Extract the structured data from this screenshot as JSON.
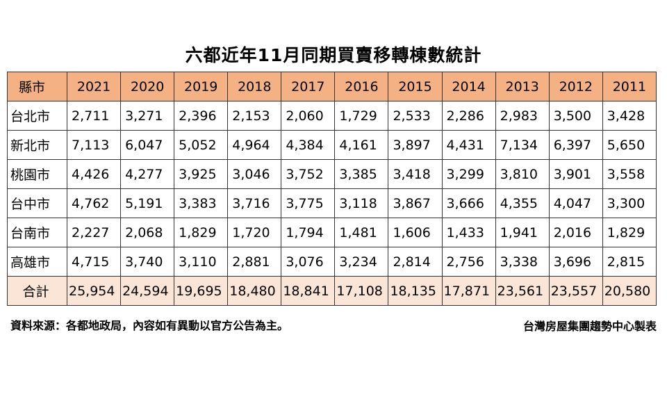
{
  "title": "六都近年11月同期買賣移轉棟數統計",
  "header": {
    "label": "縣市",
    "years": [
      "2021",
      "2020",
      "2019",
      "2018",
      "2017",
      "2016",
      "2015",
      "2014",
      "2013",
      "2012",
      "2011"
    ]
  },
  "rows": [
    {
      "city": "台北市",
      "values": [
        "2,711",
        "3,271",
        "2,396",
        "2,153",
        "2,060",
        "1,729",
        "2,533",
        "2,286",
        "2,983",
        "3,500",
        "3,428"
      ]
    },
    {
      "city": "新北市",
      "values": [
        "7,113",
        "6,047",
        "5,052",
        "4,964",
        "4,384",
        "4,161",
        "3,897",
        "4,431",
        "7,134",
        "6,397",
        "5,650"
      ]
    },
    {
      "city": "桃園市",
      "values": [
        "4,426",
        "4,277",
        "3,925",
        "3,046",
        "3,752",
        "3,385",
        "3,418",
        "3,299",
        "3,810",
        "3,901",
        "3,558"
      ]
    },
    {
      "city": "台中市",
      "values": [
        "4,762",
        "5,191",
        "3,383",
        "3,716",
        "3,775",
        "3,118",
        "3,867",
        "3,666",
        "4,355",
        "4,047",
        "3,300"
      ]
    },
    {
      "city": "台南市",
      "values": [
        "2,227",
        "2,068",
        "1,829",
        "1,720",
        "1,794",
        "1,481",
        "1,606",
        "1,433",
        "1,941",
        "2,016",
        "1,829"
      ]
    },
    {
      "city": "高雄市",
      "values": [
        "4,715",
        "3,740",
        "3,110",
        "2,881",
        "3,076",
        "3,234",
        "2,814",
        "2,756",
        "3,338",
        "3,696",
        "2,815"
      ]
    }
  ],
  "total": {
    "label": "合計",
    "values": [
      "25,954",
      "24,594",
      "19,695",
      "18,480",
      "18,841",
      "17,108",
      "18,135",
      "17,871",
      "23,561",
      "23,557",
      "20,580"
    ]
  },
  "footer": {
    "source": "資料來源：各都地政局，內容如有異動以官方公告為主。",
    "credit": "台灣房屋集團趨勢中心製表"
  },
  "colors": {
    "header_bg": "#f4b183",
    "total_bg": "#fbe5d6"
  },
  "chart_data": {
    "type": "table",
    "title": "六都近年11月同期買賣移轉棟數統計",
    "columns": [
      "縣市",
      "2021",
      "2020",
      "2019",
      "2018",
      "2017",
      "2016",
      "2015",
      "2014",
      "2013",
      "2012",
      "2011"
    ],
    "categories": [
      "2021",
      "2020",
      "2019",
      "2018",
      "2017",
      "2016",
      "2015",
      "2014",
      "2013",
      "2012",
      "2011"
    ],
    "series": [
      {
        "name": "台北市",
        "values": [
          2711,
          3271,
          2396,
          2153,
          2060,
          1729,
          2533,
          2286,
          2983,
          3500,
          3428
        ]
      },
      {
        "name": "新北市",
        "values": [
          7113,
          6047,
          5052,
          4964,
          4384,
          4161,
          3897,
          4431,
          7134,
          6397,
          5650
        ]
      },
      {
        "name": "桃園市",
        "values": [
          4426,
          4277,
          3925,
          3046,
          3752,
          3385,
          3418,
          3299,
          3810,
          3901,
          3558
        ]
      },
      {
        "name": "台中市",
        "values": [
          4762,
          5191,
          3383,
          3716,
          3775,
          3118,
          3867,
          3666,
          4355,
          4047,
          3300
        ]
      },
      {
        "name": "台南市",
        "values": [
          2227,
          2068,
          1829,
          1720,
          1794,
          1481,
          1606,
          1433,
          1941,
          2016,
          1829
        ]
      },
      {
        "name": "高雄市",
        "values": [
          4715,
          3740,
          3110,
          2881,
          3076,
          3234,
          2814,
          2756,
          3338,
          3696,
          2815
        ]
      },
      {
        "name": "合計",
        "values": [
          25954,
          24594,
          19695,
          18480,
          18841,
          17108,
          18135,
          17871,
          23561,
          23557,
          20580
        ]
      }
    ]
  }
}
